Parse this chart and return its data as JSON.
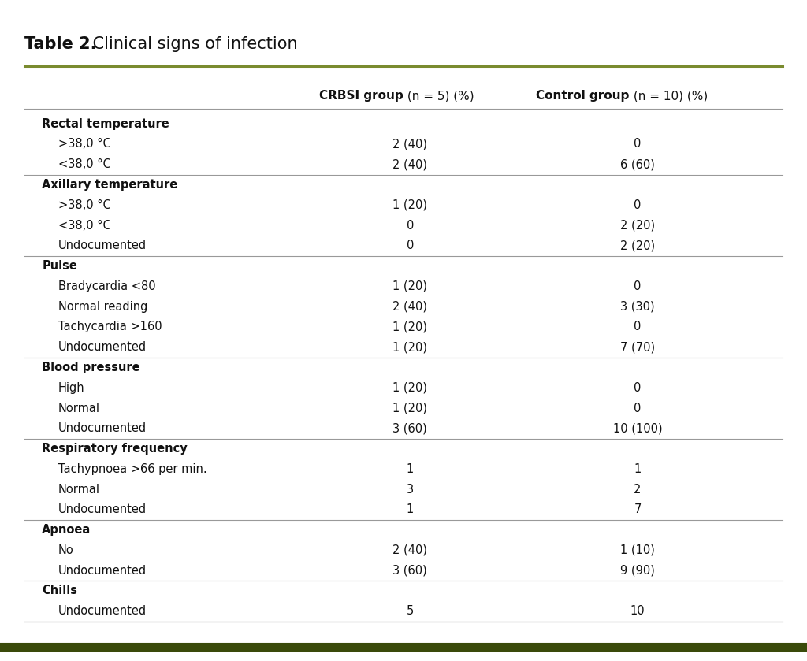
{
  "title_bold": "Table 2.",
  "title_normal": " Clinical signs of infection",
  "rows": [
    {
      "label": "Rectal temperature",
      "bold": true,
      "crbsi": "",
      "control": ""
    },
    {
      "label": ">38,0 °C",
      "bold": false,
      "crbsi": "2 (40)",
      "control": "0"
    },
    {
      "label": "<38,0 °C",
      "bold": false,
      "crbsi": "2 (40)",
      "control": "6 (60)"
    },
    {
      "label": "Axillary temperature",
      "bold": true,
      "crbsi": "",
      "control": ""
    },
    {
      "label": ">38,0 °C",
      "bold": false,
      "crbsi": "1 (20)",
      "control": "0"
    },
    {
      "label": "<38,0 °C",
      "bold": false,
      "crbsi": "0",
      "control": "2 (20)"
    },
    {
      "label": "Undocumented",
      "bold": false,
      "crbsi": "0",
      "control": "2 (20)"
    },
    {
      "label": "Pulse",
      "bold": true,
      "crbsi": "",
      "control": ""
    },
    {
      "label": "Bradycardia <80",
      "bold": false,
      "crbsi": "1 (20)",
      "control": "0"
    },
    {
      "label": "Normal reading",
      "bold": false,
      "crbsi": "2 (40)",
      "control": "3 (30)"
    },
    {
      "label": "Tachycardia >160",
      "bold": false,
      "crbsi": "1 (20)",
      "control": "0"
    },
    {
      "label": "Undocumented",
      "bold": false,
      "crbsi": "1 (20)",
      "control": "7 (70)"
    },
    {
      "label": "Blood pressure",
      "bold": true,
      "crbsi": "",
      "control": ""
    },
    {
      "label": "High",
      "bold": false,
      "crbsi": "1 (20)",
      "control": "0"
    },
    {
      "label": "Normal",
      "bold": false,
      "crbsi": "1 (20)",
      "control": "0"
    },
    {
      "label": "Undocumented",
      "bold": false,
      "crbsi": "3 (60)",
      "control": "10 (100)"
    },
    {
      "label": "Respiratory frequency",
      "bold": true,
      "crbsi": "",
      "control": ""
    },
    {
      "label": "Tachypnoea >66 per min.",
      "bold": false,
      "crbsi": "1",
      "control": "1"
    },
    {
      "label": "Normal",
      "bold": false,
      "crbsi": "3",
      "control": "2"
    },
    {
      "label": "Undocumented",
      "bold": false,
      "crbsi": "1",
      "control": "7"
    },
    {
      "label": "Apnoea",
      "bold": true,
      "crbsi": "",
      "control": ""
    },
    {
      "label": "No",
      "bold": false,
      "crbsi": "2 (40)",
      "control": "1 (10)"
    },
    {
      "label": "Undocumented",
      "bold": false,
      "crbsi": "3 (60)",
      "control": "9 (90)"
    },
    {
      "label": "Chills",
      "bold": true,
      "crbsi": "",
      "control": ""
    },
    {
      "label": "Undocumented",
      "bold": false,
      "crbsi": "5",
      "control": "10"
    }
  ],
  "separator_rows_after": [
    2,
    6,
    11,
    15,
    19,
    22,
    24
  ],
  "olive_color": "#7A8B2F",
  "dark_olive_color": "#3A4A0A",
  "bg_color": "#FFFFFF",
  "text_color": "#111111",
  "separator_color": "#999999",
  "title_fontsize": 15,
  "header_fontsize": 11,
  "body_fontsize": 10.5
}
